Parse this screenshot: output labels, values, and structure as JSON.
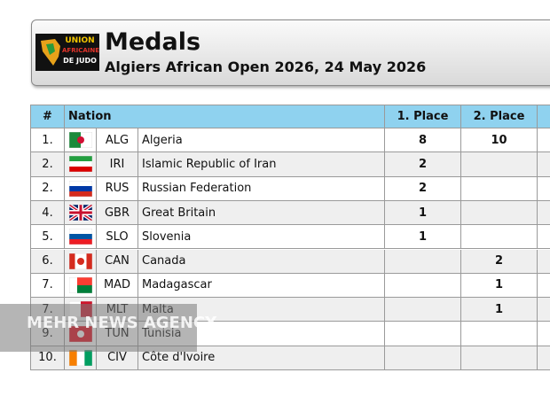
{
  "header": {
    "logo": [
      "UNION",
      "AFRICAINE",
      "DE JUDO"
    ],
    "title": "Medals",
    "subtitle": "Algiers African Open 2026, 24 May 2026"
  },
  "table": {
    "columns": [
      "#",
      "Nation",
      "1. Place",
      "2. Place"
    ],
    "rows": [
      [
        "1.",
        "ALG",
        "Algeria",
        8,
        10
      ],
      [
        "2.",
        "IRI",
        "Islamic Republic of Iran",
        2,
        null
      ],
      [
        "2.",
        "RUS",
        "Russian Federation",
        2,
        null
      ],
      [
        "4.",
        "GBR",
        "Great Britain",
        1,
        null
      ],
      [
        "5.",
        "SLO",
        "Slovenia",
        1,
        null
      ],
      [
        "6.",
        "CAN",
        "Canada",
        null,
        2
      ],
      [
        "7.",
        "MAD",
        "Madagascar",
        null,
        1
      ],
      [
        "7.",
        "MLT",
        "Malta",
        null,
        1
      ],
      [
        "9.",
        "TUN",
        "Tunisia",
        null,
        null
      ],
      [
        "10.",
        "CIV",
        "Côte d'Ivoire",
        null,
        null
      ]
    ]
  },
  "watermark": "MEHR NEWS AGENCY"
}
